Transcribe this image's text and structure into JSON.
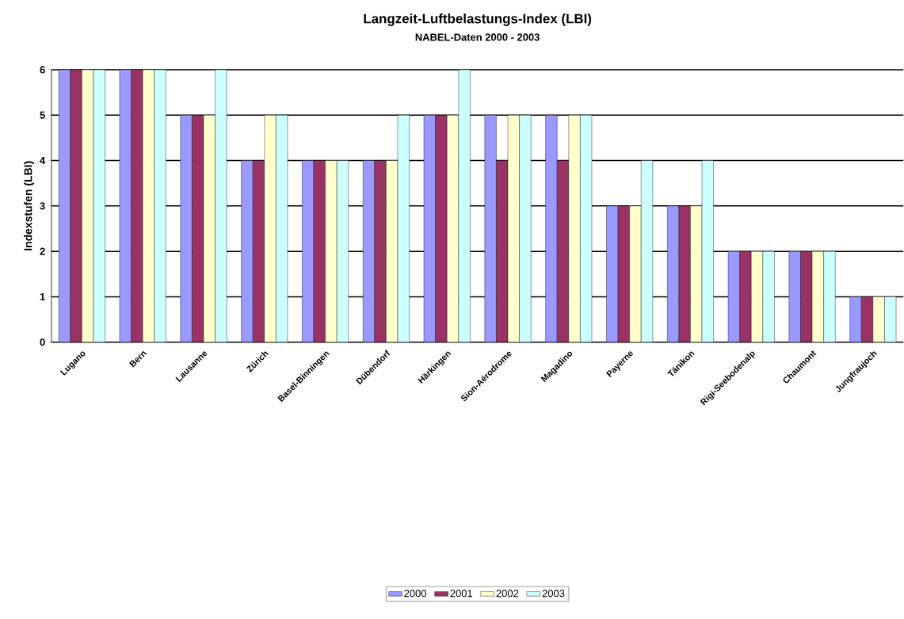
{
  "chart_data": {
    "type": "bar",
    "title": "Langzeit-Luftbelastungs-Index (LBI)",
    "subtitle": "NABEL-Daten 2000 - 2003",
    "ylabel": "Indexstufen (LBI)",
    "categories": [
      "Lugano",
      "Bern",
      "Lausanne",
      "Zürich",
      "Basel-Binningen",
      "Dübendorf",
      "Härkingen",
      "Sion-Aérodrome",
      "Magadino",
      "Payerne",
      "Tänikon",
      "Rigi-Seebodenalp",
      "Chaumont",
      "Jungfraujoch"
    ],
    "series": [
      {
        "name": "2000",
        "color": "#9999ff",
        "values": [
          6,
          6,
          5,
          4,
          4,
          4,
          5,
          5,
          5,
          3,
          3,
          2,
          2,
          1
        ]
      },
      {
        "name": "2001",
        "color": "#993366",
        "values": [
          6,
          6,
          5,
          4,
          4,
          4,
          5,
          4,
          4,
          3,
          3,
          2,
          2,
          1
        ]
      },
      {
        "name": "2002",
        "color": "#ffffcc",
        "values": [
          6,
          6,
          5,
          5,
          4,
          4,
          5,
          5,
          5,
          3,
          3,
          2,
          2,
          1
        ]
      },
      {
        "name": "2003",
        "color": "#ccffff",
        "values": [
          6,
          6,
          6,
          5,
          4,
          5,
          6,
          5,
          5,
          4,
          4,
          2,
          2,
          1
        ]
      }
    ],
    "ylim": [
      0,
      6
    ],
    "yticks": [
      0,
      1,
      2,
      3,
      4,
      5,
      6
    ],
    "grid": "y",
    "legend": "bottom"
  }
}
